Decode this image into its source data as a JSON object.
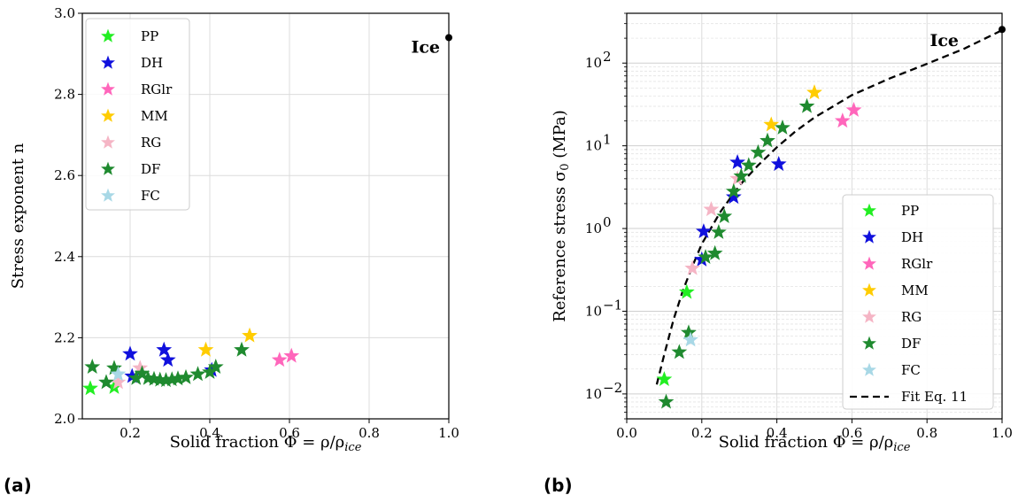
{
  "chart_data": [
    {
      "type": "scatter",
      "panel_label": "(a)",
      "xlabel": "Solid fraction Φ = ρ/ρ",
      "xlabel_sub": "ice",
      "ylabel": "Stress exponent n",
      "xlim": [
        0.08,
        1.0
      ],
      "ylim": [
        2.0,
        3.0
      ],
      "xticks": [
        "0.2",
        "0.4",
        "0.6",
        "0.8",
        "1.0"
      ],
      "xtick_values": [
        0.2,
        0.4,
        0.6,
        0.8,
        1.0
      ],
      "yticks": [
        "2.0",
        "2.2",
        "2.4",
        "2.6",
        "2.8",
        "3.0"
      ],
      "ytick_values": [
        2.0,
        2.2,
        2.4,
        2.6,
        2.8,
        3.0
      ],
      "grid": true,
      "legend_position": "top-left",
      "annotation": {
        "text": "Ice",
        "x": 1.0,
        "y": 2.94
      },
      "series": [
        {
          "name": "PP",
          "color": "#22ee22",
          "points": [
            [
              0.1,
              2.075
            ],
            [
              0.16,
              2.078
            ]
          ]
        },
        {
          "name": "DH",
          "color": "#1010dd",
          "points": [
            [
              0.2,
              2.16
            ],
            [
              0.205,
              2.105
            ],
            [
              0.285,
              2.17
            ],
            [
              0.295,
              2.145
            ],
            [
              0.405,
              2.12
            ]
          ]
        },
        {
          "name": "RGlr",
          "color": "#ff66bb",
          "points": [
            [
              0.575,
              2.145
            ],
            [
              0.605,
              2.155
            ]
          ]
        },
        {
          "name": "MM",
          "color": "#ffcc00",
          "points": [
            [
              0.39,
              2.17
            ],
            [
              0.5,
              2.205
            ]
          ]
        },
        {
          "name": "RG",
          "color": "#f5b5c5",
          "points": [
            [
              0.17,
              2.09
            ],
            [
              0.225,
              2.125
            ]
          ]
        },
        {
          "name": "DF",
          "color": "#1f8a2f",
          "points": [
            [
              0.105,
              2.128
            ],
            [
              0.14,
              2.09
            ],
            [
              0.16,
              2.125
            ],
            [
              0.215,
              2.1
            ],
            [
              0.23,
              2.112
            ],
            [
              0.245,
              2.1
            ],
            [
              0.26,
              2.098
            ],
            [
              0.275,
              2.096
            ],
            [
              0.29,
              2.095
            ],
            [
              0.305,
              2.097
            ],
            [
              0.32,
              2.099
            ],
            [
              0.34,
              2.102
            ],
            [
              0.37,
              2.11
            ],
            [
              0.4,
              2.115
            ],
            [
              0.415,
              2.128
            ],
            [
              0.48,
              2.17
            ]
          ]
        },
        {
          "name": "FC",
          "color": "#a8d8e6",
          "points": [
            [
              0.17,
              2.11
            ]
          ]
        }
      ],
      "ice_point": [
        1.0,
        2.94
      ]
    },
    {
      "type": "scatter",
      "panel_label": "(b)",
      "xlabel": "Solid fraction Φ = ρ/ρ",
      "xlabel_sub": "ice",
      "ylabel": "Reference stress σ",
      "ylabel_sub": "0",
      "ylabel_unit": "(MPa)",
      "yscale": "log",
      "xlim": [
        0.0,
        1.0
      ],
      "ylim": [
        0.005,
        400
      ],
      "xticks": [
        "0.0",
        "0.2",
        "0.4",
        "0.6",
        "0.8",
        "1.0"
      ],
      "xtick_values": [
        0.0,
        0.2,
        0.4,
        0.6,
        0.8,
        1.0
      ],
      "yticks_base": "10",
      "ytick_exponents": [
        "−2",
        "−1",
        "0",
        "1",
        "2"
      ],
      "ytick_values": [
        0.01,
        0.1,
        1,
        10,
        100
      ],
      "grid": true,
      "legend_position": "lower-right",
      "annotation": {
        "text": "Ice",
        "x": 1.0,
        "y": 250
      },
      "series": [
        {
          "name": "PP",
          "color": "#22ee22",
          "points": [
            [
              0.1,
              0.015
            ],
            [
              0.16,
              0.17
            ]
          ]
        },
        {
          "name": "DH",
          "color": "#1010dd",
          "points": [
            [
              0.2,
              0.42
            ],
            [
              0.205,
              0.92
            ],
            [
              0.285,
              2.4
            ],
            [
              0.295,
              6.3
            ],
            [
              0.405,
              6.0
            ]
          ]
        },
        {
          "name": "RGlr",
          "color": "#ff66bb",
          "points": [
            [
              0.575,
              20
            ],
            [
              0.605,
              27
            ]
          ]
        },
        {
          "name": "MM",
          "color": "#ffcc00",
          "points": [
            [
              0.385,
              18
            ],
            [
              0.5,
              44
            ]
          ]
        },
        {
          "name": "RG",
          "color": "#f5b5c5",
          "points": [
            [
              0.175,
              0.33
            ],
            [
              0.225,
              1.7
            ],
            [
              0.295,
              4.0
            ]
          ]
        },
        {
          "name": "DF",
          "color": "#1f8a2f",
          "points": [
            [
              0.105,
              0.008
            ],
            [
              0.14,
              0.032
            ],
            [
              0.165,
              0.055
            ],
            [
              0.21,
              0.45
            ],
            [
              0.235,
              0.5
            ],
            [
              0.245,
              0.9
            ],
            [
              0.26,
              1.4
            ],
            [
              0.285,
              2.8
            ],
            [
              0.305,
              4.3
            ],
            [
              0.325,
              5.8
            ],
            [
              0.35,
              8.3
            ],
            [
              0.375,
              11.5
            ],
            [
              0.415,
              16.5
            ],
            [
              0.48,
              30
            ]
          ]
        },
        {
          "name": "FC",
          "color": "#a8d8e6",
          "points": [
            [
              0.17,
              0.045
            ]
          ]
        }
      ],
      "fit": {
        "name": "Fit Eq. 11",
        "color": "#000000",
        "points": [
          [
            0.08,
            0.013
          ],
          [
            0.1,
            0.03
          ],
          [
            0.125,
            0.08
          ],
          [
            0.15,
            0.18
          ],
          [
            0.175,
            0.35
          ],
          [
            0.2,
            0.65
          ],
          [
            0.25,
            1.6
          ],
          [
            0.3,
            3.3
          ],
          [
            0.35,
            5.8
          ],
          [
            0.4,
            9.6
          ],
          [
            0.45,
            15
          ],
          [
            0.5,
            22
          ],
          [
            0.55,
            30
          ],
          [
            0.6,
            41
          ],
          [
            0.7,
            65
          ],
          [
            0.8,
            98
          ],
          [
            0.9,
            150
          ],
          [
            1.0,
            250
          ]
        ]
      },
      "ice_point": [
        1.0,
        255
      ]
    }
  ]
}
